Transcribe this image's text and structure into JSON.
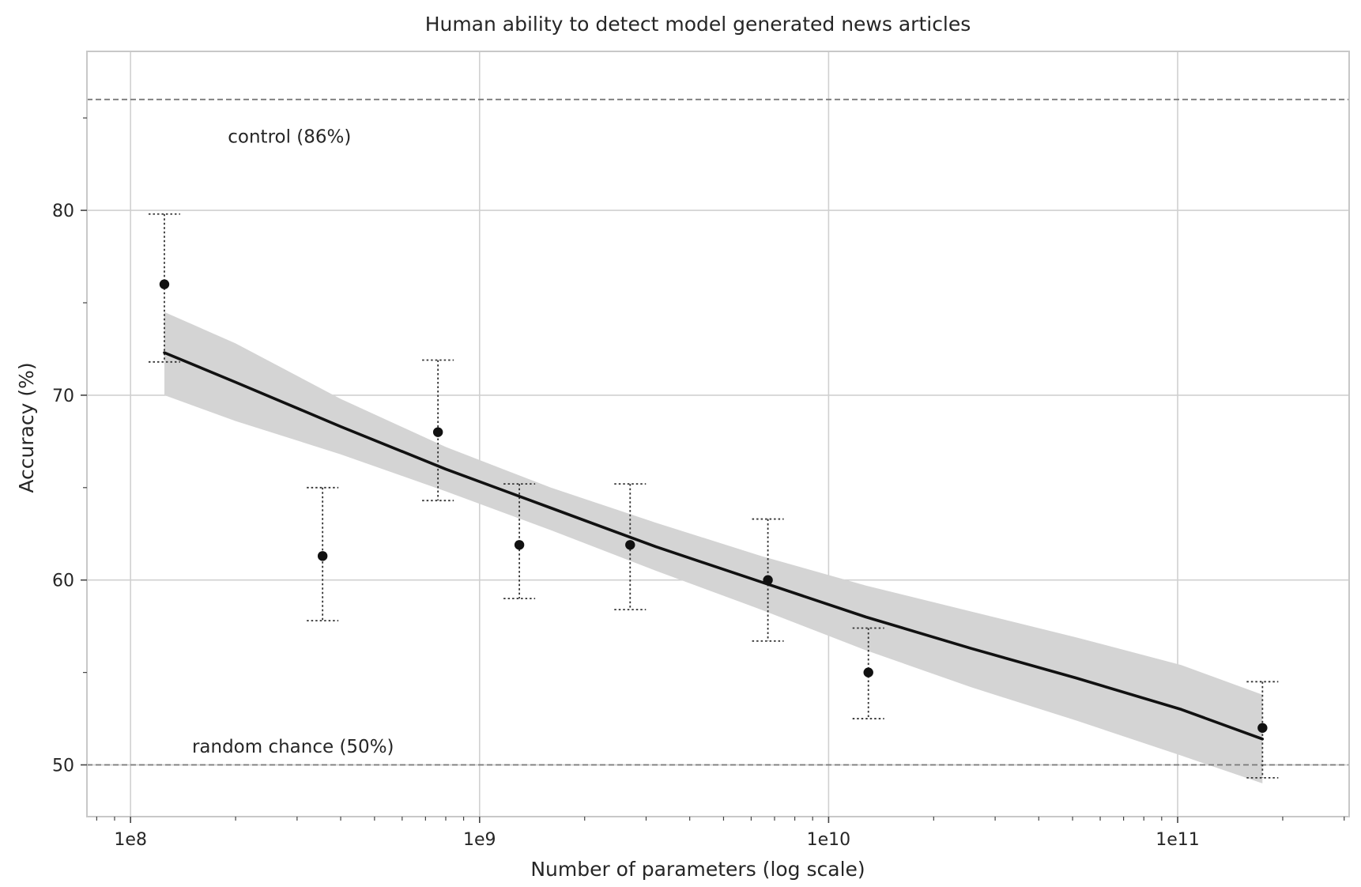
{
  "chart_data": {
    "type": "scatter",
    "title": "Human ability to detect model generated news articles",
    "xlabel": "Number of parameters (log scale)",
    "ylabel": "Accuracy (%)",
    "xscale": "log",
    "xlim": [
      75000000,
      310000000000
    ],
    "ylim": [
      47.2,
      88.6
    ],
    "grid": true,
    "x_major_ticks": [
      {
        "value": 100000000,
        "label": "1e8"
      },
      {
        "value": 1000000000,
        "label": "1e9"
      },
      {
        "value": 10000000000,
        "label": "1e10"
      },
      {
        "value": 100000000000,
        "label": "1e11"
      }
    ],
    "y_major_ticks": [
      {
        "value": 50,
        "label": "50"
      },
      {
        "value": 60,
        "label": "60"
      },
      {
        "value": 70,
        "label": "70"
      },
      {
        "value": 80,
        "label": "80"
      }
    ],
    "y_minor_ticks": [
      55,
      65,
      75,
      85
    ],
    "reference_lines": [
      {
        "name": "control",
        "y": 86,
        "label": "control (86%)",
        "label_x": 190000000,
        "label_y": 84
      },
      {
        "name": "random-chance",
        "y": 50,
        "label": "random chance (50%)",
        "label_x": 150000000,
        "label_y": 51
      }
    ],
    "points": [
      {
        "x": 125000000,
        "y": 76.0,
        "lo": 71.8,
        "hi": 79.8
      },
      {
        "x": 355000000,
        "y": 61.3,
        "lo": 57.8,
        "hi": 65.0
      },
      {
        "x": 760000000,
        "y": 68.0,
        "lo": 64.3,
        "hi": 71.9
      },
      {
        "x": 1300000000,
        "y": 61.9,
        "lo": 59.0,
        "hi": 65.2
      },
      {
        "x": 2700000000,
        "y": 61.9,
        "lo": 58.4,
        "hi": 65.2
      },
      {
        "x": 6700000000,
        "y": 60.0,
        "lo": 56.7,
        "hi": 63.3
      },
      {
        "x": 13000000000,
        "y": 55.0,
        "lo": 52.5,
        "hi": 57.4
      },
      {
        "x": 175000000000,
        "y": 52.0,
        "lo": 49.3,
        "hi": 54.5
      }
    ],
    "fit": {
      "x": [
        125000000,
        200000000,
        400000000,
        800000000,
        1600000000,
        3200000000,
        6400000000,
        12800000000,
        25600000000,
        51200000000,
        102400000000,
        175000000000
      ],
      "y": [
        72.3,
        70.7,
        68.3,
        66.0,
        63.9,
        61.8,
        59.9,
        58.0,
        56.3,
        54.7,
        53.0,
        51.4
      ],
      "lower": [
        70.0,
        68.6,
        66.8,
        64.8,
        62.7,
        60.5,
        58.4,
        56.2,
        54.2,
        52.4,
        50.5,
        49.0
      ],
      "upper": [
        74.5,
        72.8,
        69.8,
        67.2,
        65.0,
        63.1,
        61.3,
        59.7,
        58.3,
        56.9,
        55.4,
        53.8
      ]
    },
    "colors": {
      "fit_line": "#111111",
      "band": "#d4d4d4",
      "points": "#111111",
      "grid": "#d0d0d0",
      "reference": "#7a7a7a",
      "frame": "#c8c8c8"
    }
  }
}
